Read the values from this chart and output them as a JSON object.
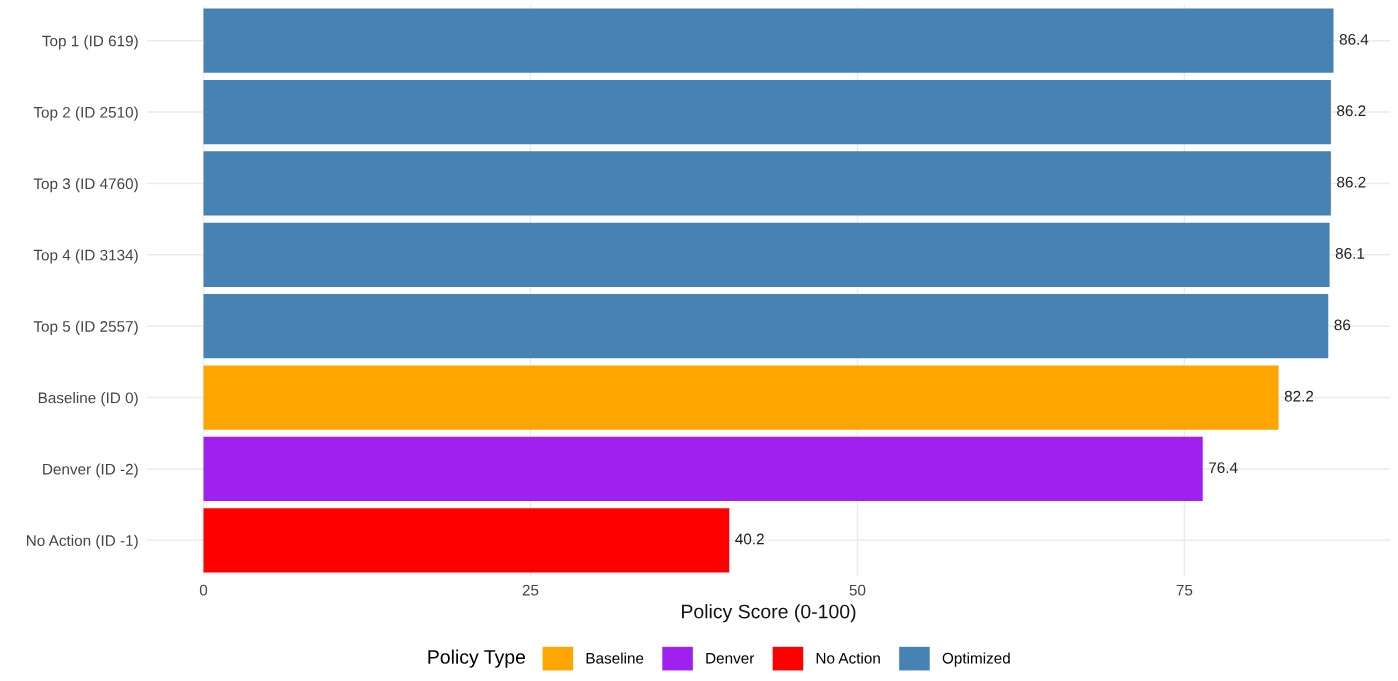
{
  "chart_data": {
    "type": "bar",
    "orientation": "horizontal",
    "xlabel": "Policy Score (0-100)",
    "legend_title": "Policy Type",
    "legend": "bottom",
    "categories": [
      "Top 1 (ID 619)",
      "Top 2 (ID 2510)",
      "Top 3 (ID 4760)",
      "Top 4 (ID 3134)",
      "Top 5 (ID 2557)",
      "Baseline (ID 0)",
      "Denver (ID -2)",
      "No Action (ID -1)"
    ],
    "series": [
      {
        "name": "Baseline",
        "color": "#ffa500",
        "values": [
          null,
          null,
          null,
          null,
          null,
          82.2,
          null,
          null
        ]
      },
      {
        "name": "Denver",
        "color": "#a020f0",
        "values": [
          null,
          null,
          null,
          null,
          null,
          null,
          76.4,
          null
        ]
      },
      {
        "name": "No Action",
        "color": "#ff0000",
        "values": [
          null,
          null,
          null,
          null,
          null,
          null,
          null,
          40.2
        ]
      },
      {
        "name": "Optimized",
        "color": "#4682b4",
        "values": [
          86.4,
          86.2,
          86.2,
          86.1,
          86,
          null,
          null,
          null
        ]
      }
    ],
    "xlim": [
      -4.32,
      90.72
    ],
    "xticks": [
      0,
      25,
      50,
      75
    ],
    "grid": true,
    "data_labels": true
  }
}
